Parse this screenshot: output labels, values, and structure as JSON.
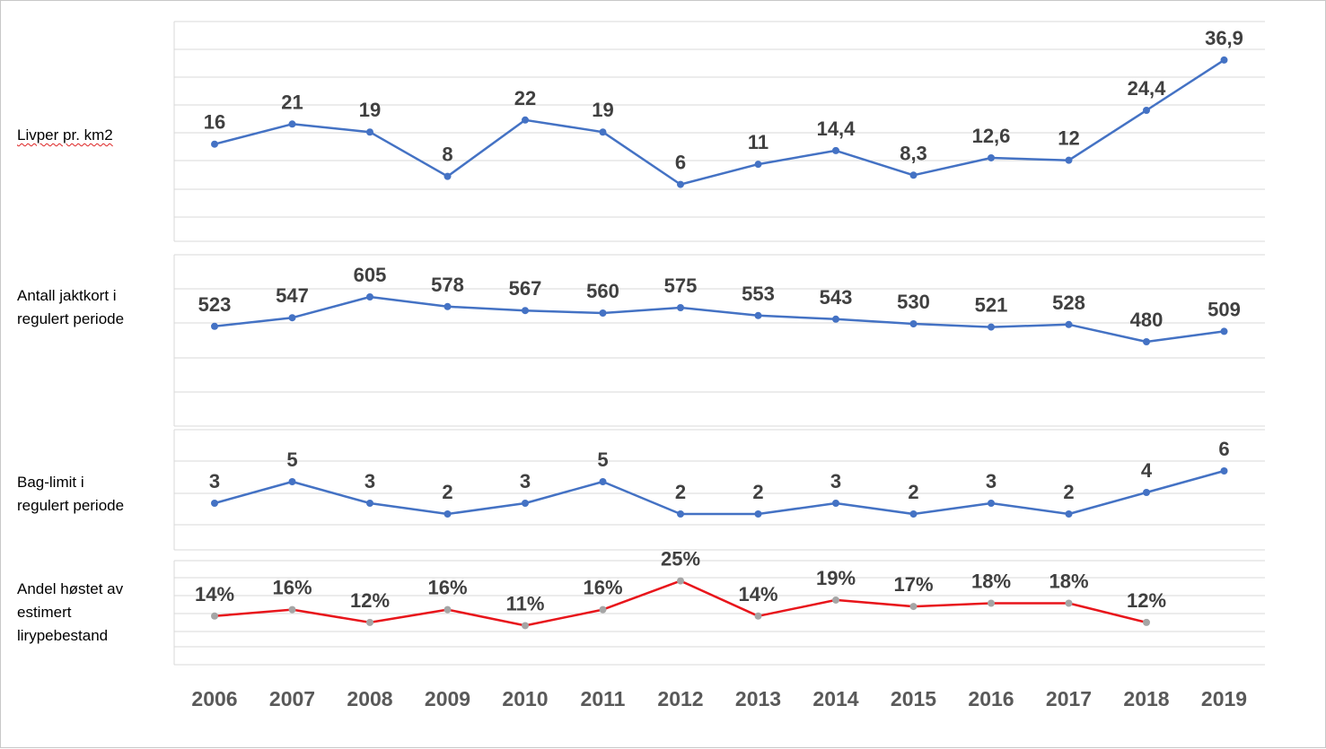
{
  "chart_data": {
    "type": "line",
    "x": [
      "2006",
      "2007",
      "2008",
      "2009",
      "2010",
      "2011",
      "2012",
      "2013",
      "2014",
      "2015",
      "2016",
      "2017",
      "2018",
      "2019"
    ],
    "panels": [
      {
        "id": "livper",
        "label_lines": [
          "Livper pr. km2"
        ],
        "values": [
          16,
          21,
          19,
          8,
          22,
          19,
          6,
          11,
          14.4,
          8.3,
          12.6,
          12,
          24.4,
          36.9
        ],
        "data_labels": [
          "16",
          "21",
          "19",
          "8",
          "22",
          "19",
          "6",
          "11",
          "14,4",
          "8,3",
          "12,6",
          "12",
          "24,4",
          "36,9"
        ],
        "ylim": [
          -1,
          40
        ],
        "line_color": "#4472c4",
        "marker_color": "#4472c4"
      },
      {
        "id": "jaktkort",
        "label_lines": [
          "Antall jaktkort i",
          "regulert periode"
        ],
        "values": [
          523,
          547,
          605,
          578,
          567,
          560,
          575,
          553,
          543,
          530,
          521,
          528,
          480,
          509
        ],
        "data_labels": [
          "523",
          "547",
          "605",
          "578",
          "567",
          "560",
          "575",
          "553",
          "543",
          "530",
          "521",
          "528",
          "480",
          "509"
        ],
        "ylim": [
          400,
          640
        ],
        "line_color": "#4472c4",
        "marker_color": "#4472c4"
      },
      {
        "id": "baglimit",
        "label_lines": [
          "Bag-limit i",
          "regulert periode"
        ],
        "values": [
          3,
          5,
          3,
          2,
          3,
          5,
          2,
          2,
          3,
          2,
          3,
          2,
          4,
          6
        ],
        "data_labels": [
          "3",
          "5",
          "3",
          "2",
          "3",
          "5",
          "2",
          "2",
          "3",
          "2",
          "3",
          "2",
          "4",
          "6"
        ],
        "ylim": [
          1,
          7
        ],
        "line_color": "#4472c4",
        "marker_color": "#4472c4"
      },
      {
        "id": "andel",
        "label_lines": [
          "Andel høstet av",
          "estimert",
          "lirypebestand"
        ],
        "values": [
          0.14,
          0.16,
          0.12,
          0.16,
          0.11,
          0.16,
          0.25,
          0.14,
          0.19,
          0.17,
          0.18,
          0.18,
          0.12,
          null
        ],
        "data_labels": [
          "14%",
          "16%",
          "12%",
          "16%",
          "11%",
          "16%",
          "25%",
          "14%",
          "19%",
          "17%",
          "18%",
          "18%",
          "12%",
          ""
        ],
        "ylim": [
          0.1,
          0.26
        ],
        "line_color": "#e8151b",
        "marker_color": "#a5a5a5"
      }
    ],
    "grid": true
  }
}
